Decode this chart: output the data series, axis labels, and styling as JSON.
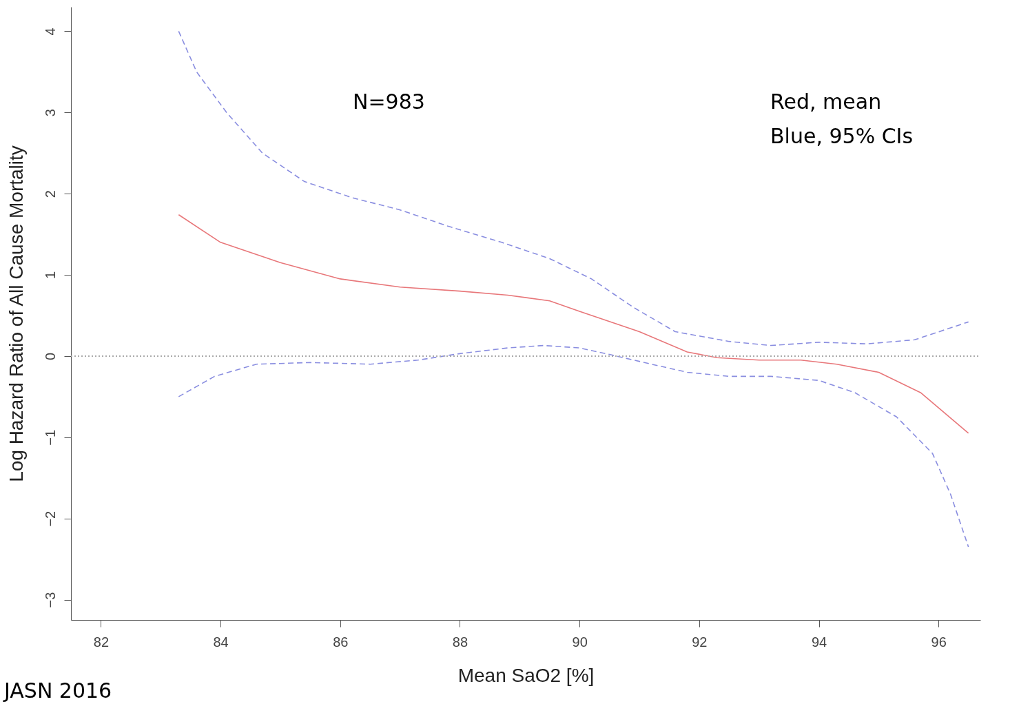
{
  "chart_data": {
    "type": "line",
    "xlabel": "Mean SaO2 [%]",
    "ylabel": "Log Hazard Ratio of All Cause Mortality",
    "xlim": [
      81.5,
      96.7
    ],
    "xticks": [
      82,
      84,
      86,
      88,
      90,
      92,
      94,
      96
    ],
    "ylim": [
      -3.25,
      4.3
    ],
    "yticks": [
      -3,
      -2,
      -1,
      0,
      1,
      2,
      3,
      4
    ],
    "grid": false,
    "marker": "none",
    "ref_lines": [
      {
        "axis": "y",
        "value": 0,
        "color": "#aaaaaa",
        "line_style": "dotted"
      }
    ],
    "annotations": [
      "N=983",
      "Red, mean",
      "Blue, 95% CIs",
      "JASN 2016"
    ],
    "series": [
      {
        "color": "#e8777a",
        "line_style": "solid",
        "x": [
          83.3,
          84,
          85,
          86,
          87,
          88,
          88.8,
          89.5,
          90,
          91,
          91.8,
          92.3,
          93,
          93.7,
          94.3,
          95,
          95.7,
          96.5
        ],
        "values": [
          1.74,
          1.4,
          1.15,
          0.95,
          0.85,
          0.8,
          0.75,
          0.68,
          0.55,
          0.3,
          0.05,
          -0.02,
          -0.05,
          -0.05,
          -0.1,
          -0.2,
          -0.45,
          -0.95
        ]
      },
      {
        "color": "#8a8ee0",
        "line_style": "dashed",
        "x": [
          83.3,
          83.6,
          84.1,
          84.7,
          85.4,
          86.2,
          87,
          87.8,
          88.7,
          89.5,
          90.2,
          90.9,
          91.6,
          92.5,
          93.2,
          94,
          94.8,
          95.6,
          96.5
        ],
        "values": [
          4.0,
          3.5,
          3.0,
          2.5,
          2.15,
          1.95,
          1.8,
          1.6,
          1.4,
          1.2,
          0.95,
          0.6,
          0.3,
          0.18,
          0.13,
          0.17,
          0.15,
          0.2,
          0.42
        ]
      },
      {
        "color": "#8a8ee0",
        "line_style": "dashed",
        "x": [
          83.3,
          83.9,
          84.6,
          85.5,
          86.5,
          87.3,
          88,
          88.8,
          89.4,
          90,
          90.5,
          91.2,
          91.8,
          92.5,
          93.2,
          94,
          94.6,
          95.3,
          95.9,
          96.2,
          96.5
        ],
        "values": [
          -0.5,
          -0.25,
          -0.1,
          -0.08,
          -0.1,
          -0.05,
          0.03,
          0.1,
          0.13,
          0.1,
          0.02,
          -0.1,
          -0.2,
          -0.25,
          -0.25,
          -0.3,
          -0.45,
          -0.75,
          -1.2,
          -1.7,
          -2.35
        ]
      }
    ]
  }
}
